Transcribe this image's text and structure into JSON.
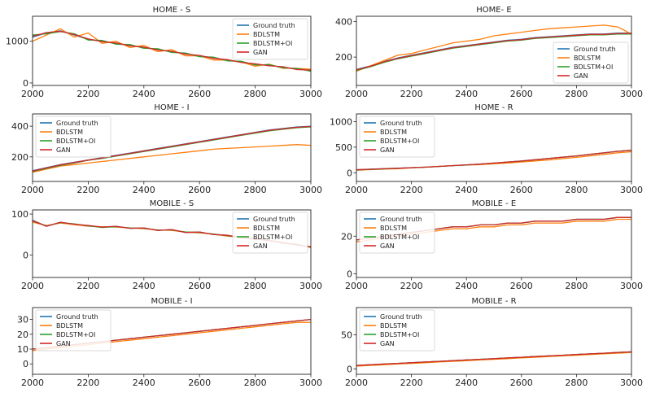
{
  "legend_labels": [
    "Ground truth",
    "BDLSTM",
    "BDLSTM+OI",
    "GAN"
  ],
  "series_colors": {
    "Ground truth": "#1f77b4",
    "BDLSTM": "#ff7f0e",
    "BDLSTM+OI": "#2ca02c",
    "GAN": "#d62728"
  },
  "chart_data": [
    {
      "type": "line",
      "title": "HOME - S",
      "xlim": [
        2000,
        3000
      ],
      "xticks": [
        2000,
        2200,
        2400,
        2600,
        2800,
        3000
      ],
      "ylim": [
        -60,
        1600
      ],
      "yticks": [
        0,
        1000
      ],
      "grid": false,
      "legend": "top-right",
      "x": [
        2000,
        2050,
        2100,
        2150,
        2200,
        2250,
        2300,
        2350,
        2400,
        2450,
        2500,
        2550,
        2600,
        2650,
        2700,
        2750,
        2800,
        2850,
        2900,
        2950,
        3000
      ],
      "series": [
        {
          "name": "Ground truth",
          "values": [
            1100,
            1200,
            1250,
            1150,
            1050,
            1000,
            950,
            900,
            850,
            800,
            750,
            700,
            650,
            600,
            550,
            500,
            450,
            420,
            380,
            330,
            300
          ]
        },
        {
          "name": "BDLSTM",
          "values": [
            1000,
            1150,
            1300,
            1100,
            1200,
            950,
            1000,
            850,
            900,
            750,
            800,
            650,
            650,
            550,
            550,
            500,
            400,
            450,
            350,
            350,
            330
          ]
        },
        {
          "name": "BDLSTM+OI",
          "values": [
            1150,
            1180,
            1230,
            1180,
            1030,
            1020,
            930,
            920,
            830,
            820,
            730,
            720,
            630,
            620,
            530,
            520,
            430,
            440,
            360,
            350,
            280
          ]
        },
        {
          "name": "GAN",
          "values": [
            1120,
            1210,
            1240,
            1160,
            1060,
            990,
            960,
            890,
            860,
            790,
            760,
            690,
            660,
            590,
            560,
            490,
            460,
            410,
            390,
            320,
            310
          ]
        }
      ]
    },
    {
      "type": "line",
      "title": "HOME- E",
      "xlim": [
        2000,
        3000
      ],
      "xticks": [
        2000,
        2200,
        2400,
        2600,
        2800,
        3000
      ],
      "ylim": [
        40,
        430
      ],
      "yticks": [
        200,
        400
      ],
      "grid": false,
      "legend": "bottom-right",
      "x": [
        2000,
        2050,
        2100,
        2150,
        2200,
        2250,
        2300,
        2350,
        2400,
        2450,
        2500,
        2550,
        2600,
        2650,
        2700,
        2750,
        2800,
        2850,
        2900,
        2950,
        3000
      ],
      "series": [
        {
          "name": "Ground truth",
          "values": [
            130,
            150,
            175,
            195,
            210,
            225,
            240,
            255,
            265,
            275,
            285,
            295,
            300,
            310,
            315,
            320,
            325,
            330,
            330,
            335,
            335
          ]
        },
        {
          "name": "BDLSTM",
          "values": [
            120,
            150,
            180,
            210,
            220,
            240,
            260,
            280,
            290,
            300,
            320,
            330,
            340,
            350,
            360,
            365,
            370,
            375,
            380,
            370,
            330
          ]
        },
        {
          "name": "BDLSTM+OI",
          "values": [
            125,
            145,
            170,
            190,
            205,
            220,
            235,
            250,
            260,
            270,
            280,
            290,
            295,
            305,
            310,
            315,
            320,
            325,
            325,
            330,
            330
          ]
        },
        {
          "name": "GAN",
          "values": [
            128,
            148,
            173,
            193,
            208,
            223,
            238,
            253,
            263,
            273,
            283,
            293,
            298,
            308,
            313,
            318,
            323,
            328,
            328,
            333,
            333
          ]
        }
      ]
    },
    {
      "type": "line",
      "title": "HOME - I",
      "xlim": [
        2000,
        3000
      ],
      "xticks": [
        2000,
        2200,
        2400,
        2600,
        2800,
        3000
      ],
      "ylim": [
        40,
        480
      ],
      "yticks": [
        200,
        400
      ],
      "grid": false,
      "legend": "top-left",
      "x": [
        2000,
        2050,
        2100,
        2150,
        2200,
        2250,
        2300,
        2350,
        2400,
        2450,
        2500,
        2550,
        2600,
        2650,
        2700,
        2750,
        2800,
        2850,
        2900,
        2950,
        3000
      ],
      "series": [
        {
          "name": "Ground truth",
          "values": [
            110,
            130,
            150,
            165,
            180,
            195,
            210,
            225,
            240,
            255,
            270,
            285,
            300,
            315,
            330,
            345,
            360,
            375,
            385,
            395,
            400
          ]
        },
        {
          "name": "BDLSTM",
          "values": [
            100,
            120,
            140,
            150,
            160,
            170,
            180,
            190,
            200,
            210,
            220,
            230,
            240,
            250,
            255,
            260,
            265,
            270,
            275,
            280,
            275
          ]
        },
        {
          "name": "BDLSTM+OI",
          "values": [
            105,
            125,
            145,
            160,
            178,
            190,
            205,
            220,
            235,
            250,
            265,
            280,
            295,
            310,
            325,
            340,
            355,
            370,
            380,
            390,
            395
          ]
        },
        {
          "name": "GAN",
          "values": [
            108,
            128,
            148,
            163,
            179,
            193,
            208,
            223,
            238,
            253,
            268,
            283,
            298,
            313,
            328,
            343,
            358,
            373,
            383,
            393,
            398
          ]
        }
      ]
    },
    {
      "type": "line",
      "title": "HOME - R",
      "xlim": [
        2000,
        3000
      ],
      "xticks": [
        2000,
        2200,
        2400,
        2600,
        2800,
        3000
      ],
      "ylim": [
        -170,
        1150
      ],
      "yticks": [
        0,
        500,
        1000
      ],
      "grid": false,
      "legend": "top-left",
      "x": [
        2000,
        2050,
        2100,
        2150,
        2200,
        2250,
        2300,
        2350,
        2400,
        2450,
        2500,
        2550,
        2600,
        2650,
        2700,
        2750,
        2800,
        2850,
        2900,
        2950,
        3000
      ],
      "series": [
        {
          "name": "Ground truth",
          "values": [
            60,
            70,
            80,
            90,
            100,
            110,
            125,
            140,
            155,
            170,
            190,
            210,
            230,
            255,
            280,
            305,
            330,
            360,
            390,
            420,
            440
          ]
        },
        {
          "name": "BDLSTM",
          "values": [
            50,
            60,
            70,
            80,
            95,
            110,
            125,
            140,
            150,
            160,
            175,
            190,
            210,
            230,
            250,
            275,
            300,
            330,
            360,
            390,
            410
          ]
        },
        {
          "name": "BDLSTM+OI",
          "values": [
            55,
            65,
            75,
            85,
            98,
            108,
            122,
            138,
            152,
            168,
            188,
            208,
            228,
            252,
            278,
            302,
            328,
            358,
            388,
            418,
            438
          ]
        },
        {
          "name": "GAN",
          "values": [
            58,
            68,
            78,
            88,
            99,
            109,
            124,
            139,
            154,
            169,
            189,
            209,
            229,
            254,
            279,
            304,
            329,
            359,
            389,
            419,
            439
          ]
        }
      ]
    },
    {
      "type": "line",
      "title": "MOBILE - S",
      "xlim": [
        2000,
        3000
      ],
      "xticks": [
        2000,
        2200,
        2400,
        2600,
        2800,
        3000
      ],
      "ylim": [
        -55,
        110
      ],
      "yticks": [
        0,
        100
      ],
      "grid": false,
      "legend": "top-right",
      "x": [
        2000,
        2050,
        2100,
        2150,
        2200,
        2250,
        2300,
        2350,
        2400,
        2450,
        2500,
        2550,
        2600,
        2650,
        2700,
        2750,
        2800,
        2850,
        2900,
        2950,
        3000
      ],
      "series": [
        {
          "name": "Ground truth",
          "values": [
            85,
            70,
            80,
            75,
            72,
            68,
            70,
            65,
            66,
            60,
            62,
            55,
            56,
            50,
            48,
            42,
            40,
            35,
            30,
            25,
            20
          ]
        },
        {
          "name": "BDLSTM",
          "values": [
            80,
            72,
            78,
            74,
            70,
            69,
            68,
            66,
            64,
            61,
            60,
            56,
            54,
            51,
            46,
            43,
            38,
            36,
            28,
            26,
            18
          ]
        },
        {
          "name": "BDLSTM+OI",
          "values": [
            83,
            71,
            79,
            76,
            71,
            67,
            69,
            66,
            65,
            61,
            61,
            56,
            55,
            51,
            47,
            43,
            39,
            36,
            29,
            26,
            19
          ]
        },
        {
          "name": "GAN",
          "values": [
            84,
            70,
            80,
            75,
            72,
            68,
            70,
            65,
            66,
            60,
            62,
            55,
            56,
            50,
            48,
            42,
            40,
            35,
            30,
            25,
            20
          ]
        }
      ]
    },
    {
      "type": "line",
      "title": "MOBILE - E",
      "xlim": [
        2000,
        3000
      ],
      "xticks": [
        2000,
        2200,
        2400,
        2600,
        2800,
        3000
      ],
      "ylim": [
        -2,
        34
      ],
      "yticks": [
        0,
        20
      ],
      "grid": false,
      "legend": "top-left",
      "x": [
        2000,
        2050,
        2100,
        2150,
        2200,
        2250,
        2300,
        2350,
        2400,
        2450,
        2500,
        2550,
        2600,
        2650,
        2700,
        2750,
        2800,
        2850,
        2900,
        2950,
        3000
      ],
      "series": [
        {
          "name": "Ground truth",
          "values": [
            18,
            19,
            20,
            21,
            22,
            23,
            24,
            25,
            25,
            26,
            26,
            27,
            27,
            28,
            28,
            28,
            29,
            29,
            29,
            30,
            30
          ]
        },
        {
          "name": "BDLSTM",
          "values": [
            17,
            18,
            19,
            20,
            21,
            22,
            23,
            24,
            24,
            25,
            25,
            26,
            26,
            27,
            27,
            27,
            28,
            28,
            28,
            29,
            29
          ]
        },
        {
          "name": "BDLSTM+OI",
          "values": [
            18,
            19,
            20,
            21,
            22,
            23,
            24,
            25,
            25,
            26,
            26,
            27,
            27,
            28,
            28,
            28,
            29,
            29,
            29,
            30,
            30
          ]
        },
        {
          "name": "GAN",
          "values": [
            18,
            19,
            20,
            21,
            22,
            23,
            24,
            25,
            25,
            26,
            26,
            27,
            27,
            28,
            28,
            28,
            29,
            29,
            29,
            30,
            30
          ]
        }
      ]
    },
    {
      "type": "line",
      "title": "MOBILE - I",
      "xlim": [
        2000,
        3000
      ],
      "xticks": [
        2000,
        2200,
        2400,
        2600,
        2800,
        3000
      ],
      "ylim": [
        -7,
        38
      ],
      "yticks": [
        0,
        10,
        20,
        30
      ],
      "grid": false,
      "legend": "top-left",
      "x": [
        2000,
        2050,
        2100,
        2150,
        2200,
        2250,
        2300,
        2350,
        2400,
        2450,
        2500,
        2550,
        2600,
        2650,
        2700,
        2750,
        2800,
        2850,
        2900,
        2950,
        3000
      ],
      "series": [
        {
          "name": "Ground truth",
          "values": [
            10,
            11,
            12,
            13,
            14,
            15,
            16,
            17,
            18,
            19,
            20,
            21,
            22,
            23,
            24,
            25,
            26,
            27,
            28,
            29,
            30
          ]
        },
        {
          "name": "BDLSTM",
          "values": [
            9,
            10,
            11,
            12,
            13,
            14,
            15,
            16,
            17,
            18,
            19,
            20,
            21,
            22,
            23,
            24,
            25,
            26,
            27,
            28,
            28
          ]
        },
        {
          "name": "BDLSTM+OI",
          "values": [
            10,
            11,
            12,
            13,
            14,
            15,
            16,
            17,
            18,
            19,
            20,
            21,
            22,
            23,
            24,
            25,
            26,
            27,
            28,
            29,
            30
          ]
        },
        {
          "name": "GAN",
          "values": [
            10,
            11,
            12,
            13,
            14,
            15,
            16,
            17,
            18,
            19,
            20,
            21,
            22,
            23,
            24,
            25,
            26,
            27,
            28,
            29,
            30
          ]
        }
      ]
    },
    {
      "type": "line",
      "title": "MOBILE - R",
      "xlim": [
        2000,
        3000
      ],
      "xticks": [
        2000,
        2200,
        2400,
        2600,
        2800,
        3000
      ],
      "ylim": [
        -8,
        90
      ],
      "yticks": [
        0,
        50
      ],
      "grid": false,
      "legend": "top-left",
      "x": [
        2000,
        2050,
        2100,
        2150,
        2200,
        2250,
        2300,
        2350,
        2400,
        2450,
        2500,
        2550,
        2600,
        2650,
        2700,
        2750,
        2800,
        2850,
        2900,
        2950,
        3000
      ],
      "series": [
        {
          "name": "Ground truth",
          "values": [
            5,
            6,
            7,
            8,
            9,
            10,
            11,
            12,
            13,
            14,
            15,
            16,
            17,
            18,
            19,
            20,
            21,
            22,
            23,
            24,
            25
          ]
        },
        {
          "name": "BDLSTM",
          "values": [
            4,
            5,
            6,
            7,
            8,
            9,
            10,
            11,
            12,
            13,
            14,
            15,
            16,
            17,
            18,
            19,
            20,
            21,
            22,
            23,
            24
          ]
        },
        {
          "name": "BDLSTM+OI",
          "values": [
            5,
            6,
            7,
            8,
            9,
            10,
            11,
            12,
            13,
            14,
            15,
            16,
            17,
            18,
            19,
            20,
            21,
            22,
            23,
            24,
            25
          ]
        },
        {
          "name": "GAN",
          "values": [
            5,
            6,
            7,
            8,
            9,
            10,
            11,
            12,
            13,
            14,
            15,
            16,
            17,
            18,
            19,
            20,
            21,
            22,
            23,
            24,
            25
          ]
        }
      ]
    }
  ]
}
